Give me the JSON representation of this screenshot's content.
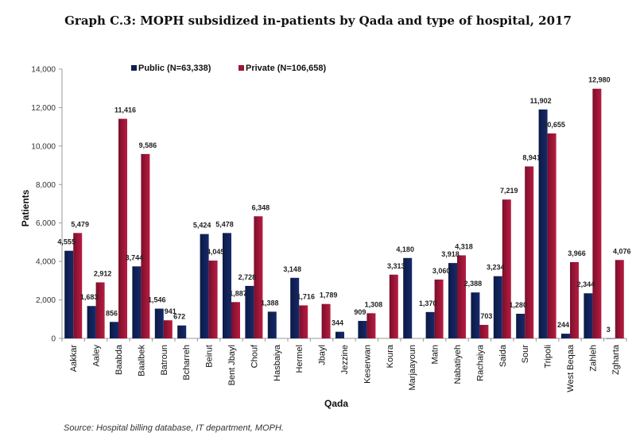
{
  "chart_data": {
    "type": "bar",
    "title": "Graph C.3: MOPH subsidized in-patients by Qada and type of hospital, 2017",
    "xlabel": "Qada",
    "ylabel": "Patients",
    "ylim": [
      0,
      14000
    ],
    "yticks": [
      0,
      2000,
      4000,
      6000,
      8000,
      10000,
      12000,
      14000
    ],
    "ytick_labels": [
      "0",
      "2,000",
      "4,000",
      "6,000",
      "8,000",
      "10,000",
      "12,000",
      "14,000"
    ],
    "grid": false,
    "legend_position": "top-center",
    "categories": [
      "Aakkar",
      "Aaley",
      "Baabda",
      "Baalbek",
      "Batroun",
      "Bcharreh",
      "Beirut",
      "Bent Jbayl",
      "Chouf",
      "Hasbaiya",
      "Hermel",
      "Jbayl",
      "Jezzine",
      "Keserwan",
      "Koura",
      "Marjaayoun",
      "Matn",
      "Nabatiyeh",
      "Rachaiya",
      "Saida",
      "Sour",
      "Tripoli",
      "West Beqaa",
      "Zahleh",
      "Zgharta"
    ],
    "series": [
      {
        "name": "Public (N=63,338)",
        "color": "#0f1f4f",
        "values": [
          4555,
          1683,
          856,
          3744,
          1546,
          672,
          5424,
          5478,
          2728,
          1388,
          3148,
          null,
          344,
          909,
          null,
          4180,
          1370,
          3918,
          2388,
          3234,
          1280,
          11902,
          244,
          2344,
          3
        ],
        "labels": [
          "4,555",
          "1,683",
          "856",
          "3,744",
          "1,546",
          "672",
          "5,424",
          "5,478",
          "2,728",
          "1,388",
          "3,148",
          "",
          "344",
          "909",
          "",
          "4,180",
          "1,370",
          "3,918",
          "2,388",
          "3,234",
          "1,280",
          "11,902",
          "244",
          "2,344",
          "3"
        ]
      },
      {
        "name": "Private (N=106,658)",
        "color": "#9b1535",
        "values": [
          5479,
          2912,
          11416,
          9586,
          941,
          null,
          4045,
          1887,
          6348,
          null,
          1716,
          1789,
          null,
          1308,
          3313,
          null,
          3060,
          4318,
          703,
          7219,
          8941,
          10655,
          3966,
          12980,
          4076
        ],
        "labels": [
          "5,479",
          "2,912",
          "11,416",
          "9,586",
          "941",
          "",
          "4,045",
          "1,887",
          "6,348",
          "",
          "1,716",
          "1,789",
          "",
          "1,308",
          "3,313",
          "",
          "3,060",
          "4,318",
          "703",
          "7,219",
          "8,941",
          "10,655",
          "3,966",
          "12,980",
          "4,076"
        ]
      }
    ]
  },
  "source_note": "Source: Hospital billing database, IT department, MOPH."
}
